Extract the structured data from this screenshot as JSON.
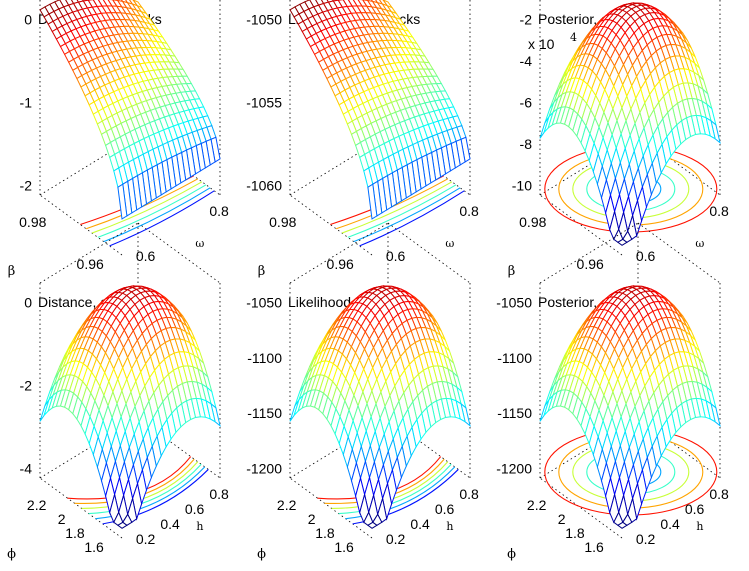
{
  "chart_data": [
    {
      "type": "surface",
      "title": "Distance, all shocks",
      "exponent": "",
      "zticks": [
        "0",
        "-1",
        "-2"
      ],
      "yticks": [
        "0.98",
        "0.96"
      ],
      "xticks": [
        "0.6",
        "0.8"
      ],
      "ylabel": "β",
      "xlabel": "ω",
      "zlim": [
        -2,
        0
      ],
      "shape": "ridge",
      "floor": "bands"
    },
    {
      "type": "surface",
      "title": "Likelihood, all shocks",
      "exponent": "",
      "zticks": [
        "-1050",
        "-1055",
        "-1060"
      ],
      "yticks": [
        "0.98",
        "0.96"
      ],
      "xticks": [
        "0.6",
        "0.8"
      ],
      "ylabel": "β",
      "xlabel": "ω",
      "zlim": [
        -1060,
        -1045
      ],
      "shape": "ridge",
      "floor": "bands"
    },
    {
      "type": "surface",
      "title": "Posterior, all shocks",
      "exponent": "x 10",
      "exponent_power": "4",
      "zticks": [
        "-2",
        "-4",
        "-6",
        "-8",
        "-10"
      ],
      "yticks": [
        "0.98",
        "0.96"
      ],
      "xticks": [
        "0.6",
        "0.8"
      ],
      "ylabel": "β",
      "xlabel": "ω",
      "zlim": [
        -10,
        0
      ],
      "shape": "dome",
      "floor": "rings"
    },
    {
      "type": "surface",
      "title": "Distance, all shocks",
      "exponent": "",
      "zticks": [
        "0",
        "-2",
        "-4"
      ],
      "yticks": [
        "2.2",
        "2",
        "1.8",
        "1.6"
      ],
      "xticks": [
        "0.2",
        "0.4",
        "0.6",
        "0.8"
      ],
      "ylabel": "ϕ",
      "xlabel": "h",
      "zlim": [
        -4,
        0
      ],
      "shape": "dome",
      "floor": "arcs"
    },
    {
      "type": "surface",
      "title": "Likelihood, all shocks",
      "exponent": "",
      "zticks": [
        "-1050",
        "-1100",
        "-1150",
        "-1200"
      ],
      "yticks": [
        "2.2",
        "2",
        "1.8",
        "1.6"
      ],
      "xticks": [
        "0.2",
        "0.4",
        "0.6",
        "0.8"
      ],
      "ylabel": "ϕ",
      "xlabel": "h",
      "zlim": [
        -1200,
        -1030
      ],
      "shape": "dome",
      "floor": "arcs"
    },
    {
      "type": "surface",
      "title": "Posterior, all shocks",
      "exponent": "",
      "zticks": [
        "-1050",
        "-1100",
        "-1150",
        "-1200"
      ],
      "yticks": [
        "2.2",
        "2",
        "1.8",
        "1.6"
      ],
      "xticks": [
        "0.2",
        "0.4",
        "0.6",
        "0.8"
      ],
      "ylabel": "ϕ",
      "xlabel": "h",
      "zlim": [
        -1200,
        -1030
      ],
      "shape": "dome",
      "floor": "rings"
    }
  ]
}
